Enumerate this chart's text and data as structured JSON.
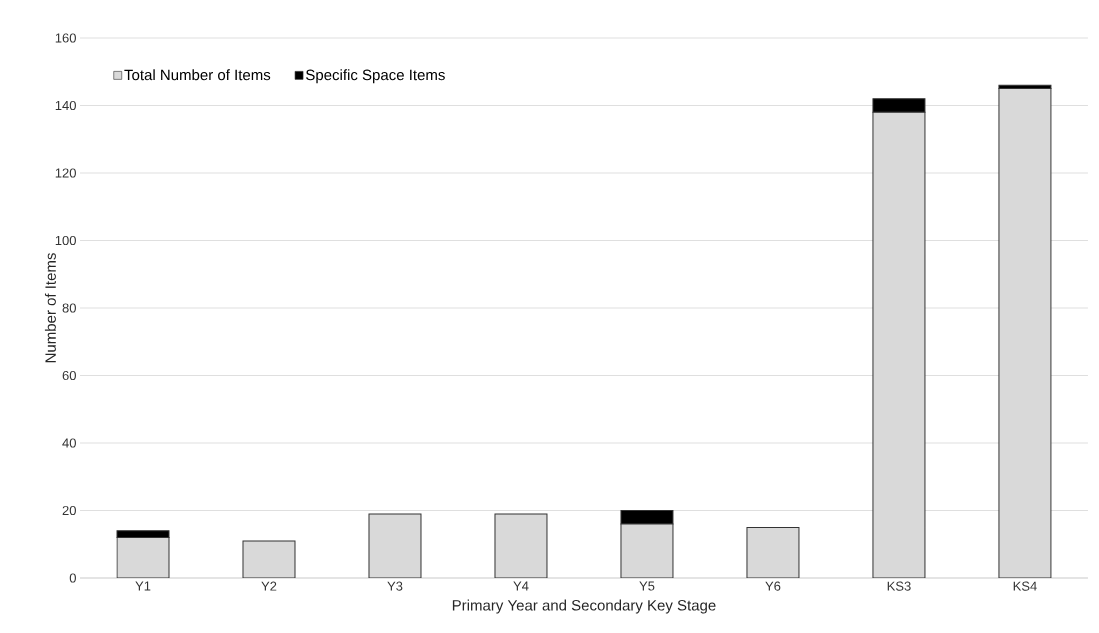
{
  "chart_data": {
    "type": "bar",
    "stacked": true,
    "xlabel": "Primary Year and Secondary Key Stage",
    "ylabel": "Number of Items",
    "categories": [
      "Y1",
      "Y2",
      "Y3",
      "Y4",
      "Y5",
      "Y6",
      "KS3",
      "KS4"
    ],
    "series": [
      {
        "name": "Total Number of Items",
        "color": "#d9d9d9",
        "values": [
          12,
          11,
          19,
          19,
          16,
          15,
          138,
          145
        ]
      },
      {
        "name": "Specific Space Items",
        "color": "#000000",
        "values": [
          2,
          0,
          0,
          0,
          4,
          0,
          4,
          1
        ]
      }
    ],
    "ylim": [
      0,
      160
    ],
    "yticks": [
      0,
      20,
      40,
      60,
      80,
      100,
      120,
      140,
      160
    ],
    "grid": "y",
    "legend": "top left"
  }
}
